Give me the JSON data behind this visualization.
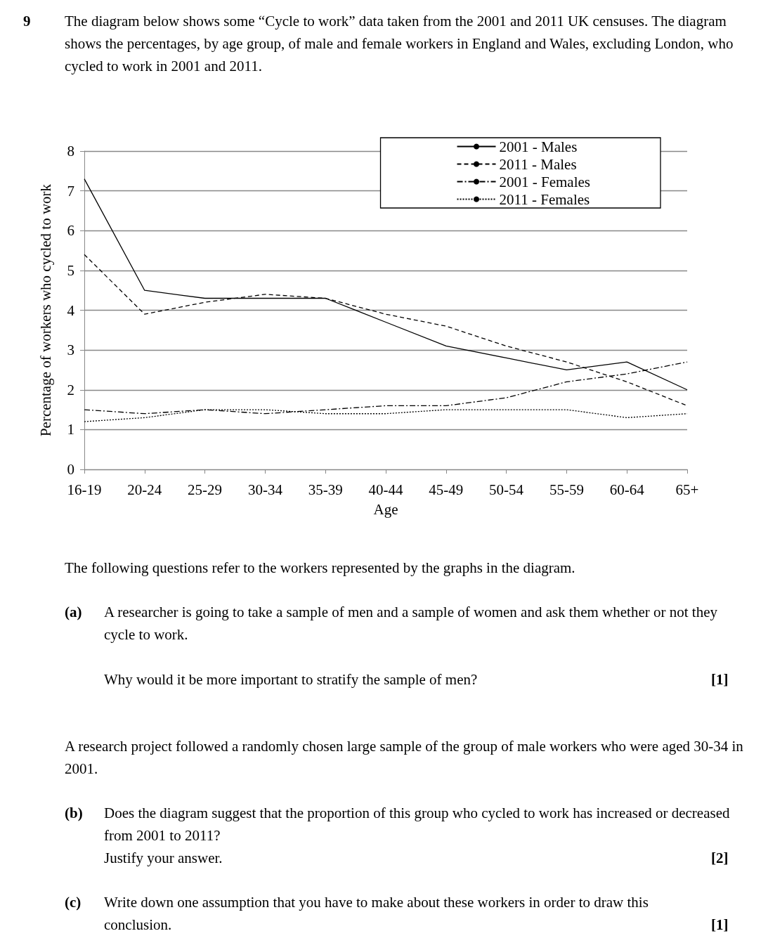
{
  "chart_data": {
    "type": "line",
    "title": "The diagram below shows some “Cycle to work” data taken from the 2001 and 2011 UK censuses. The diagram shows the percentages, by age group, of male and female workers in England and Wales, excluding London, who cycled to work in 2001 and 2011.",
    "xlabel": "Age",
    "ylabel": "Percentage of workers who cycled to work",
    "categories": [
      "16-19",
      "20-24",
      "25-29",
      "30-34",
      "35-39",
      "40-44",
      "45-49",
      "50-54",
      "55-59",
      "60-64",
      "65+"
    ],
    "series": [
      {
        "name": "2001 - Males",
        "color": "#000000",
        "line_style": "solid",
        "values": [
          7.3,
          4.5,
          4.3,
          4.3,
          4.3,
          3.7,
          3.1,
          2.8,
          2.5,
          2.7,
          2.0
        ]
      },
      {
        "name": "2011 - Males",
        "color": "#000000",
        "line_style": "dashed",
        "values": [
          5.4,
          3.9,
          4.2,
          4.4,
          4.3,
          3.9,
          3.6,
          3.1,
          2.7,
          2.2,
          1.6
        ]
      },
      {
        "name": "2001 - Females",
        "color": "#000000",
        "line_style": "dashdot",
        "values": [
          1.5,
          1.4,
          1.5,
          1.4,
          1.5,
          1.6,
          1.6,
          1.8,
          2.2,
          2.4,
          2.7
        ]
      },
      {
        "name": "2011 - Females",
        "color": "#000000",
        "line_style": "dotted",
        "values": [
          1.2,
          1.3,
          1.5,
          1.5,
          1.4,
          1.4,
          1.5,
          1.5,
          1.5,
          1.3,
          1.4
        ]
      }
    ],
    "ylim": [
      0,
      8
    ],
    "yticks": [
      0,
      1,
      2,
      3,
      4,
      5,
      6,
      7,
      8
    ],
    "grid": "y",
    "legend": "top right",
    "marker": "none",
    "annotations": [
      "9",
      "The following questions refer to the workers represented by the graphs in the diagram.",
      "(a)",
      "A researcher is going to take a sample of men and a sample of women and ask them whether or not they cycle to work.",
      "Why would it be more important to stratify the sample of men?",
      "[1]",
      "A research project followed a randomly chosen large sample of the group of male workers who were aged 30-34 in 2001.",
      "(b)",
      "Does the diagram suggest that the proportion of this group who cycled to work has increased or decreased from 2001 to 2011?",
      "Justify your answer.",
      "[2]",
      "(c)",
      "Write down one assumption that you have to make about these workers in order to draw this conclusion.",
      "[1]"
    ]
  }
}
